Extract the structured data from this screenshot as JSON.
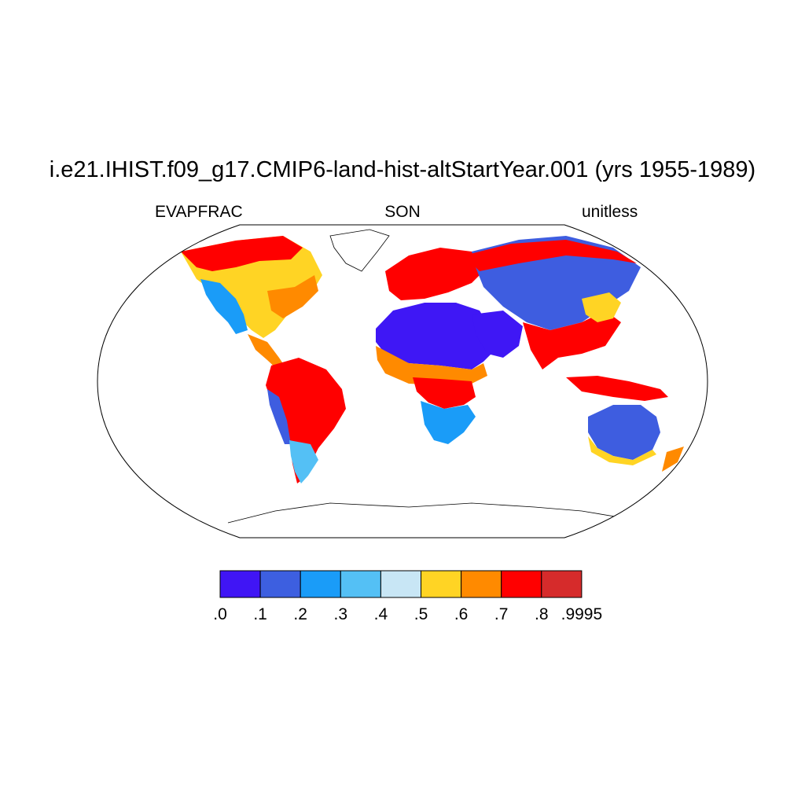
{
  "header": {
    "title": "i.e21.IHIST.f09_g17.CMIP6-land-hist-altStartYear.001 (yrs 1955-1989)",
    "left_string": "EVAPFRAC",
    "center_string": "SON",
    "right_string": "unitless"
  },
  "map": {
    "projection": "Robinson",
    "variable": "EVAPFRAC",
    "season": "SON",
    "ocean_fill": "none",
    "regions": [
      {
        "region": "Sahara / Arabia",
        "value_range": [
          0.0,
          0.1
        ],
        "color": "#3f17f5"
      },
      {
        "region": "Central Asia",
        "value_range": [
          0.1,
          0.3
        ],
        "color": "#3e5de0"
      },
      {
        "region": "Interior Australia",
        "value_range": [
          0.1,
          0.3
        ],
        "color": "#3e5de0"
      },
      {
        "region": "Southwest North America",
        "value_range": [
          0.2,
          0.4
        ],
        "color": "#1a9cf8"
      },
      {
        "region": "Amazon Basin",
        "value_range": [
          0.7,
          0.9995
        ],
        "color": "#ff0000"
      },
      {
        "region": "Central Africa",
        "value_range": [
          0.7,
          0.9995
        ],
        "color": "#ff0000"
      },
      {
        "region": "Southeast Asia / Indonesia",
        "value_range": [
          0.7,
          0.9995
        ],
        "color": "#ff0000"
      },
      {
        "region": "Sahel",
        "value_range": [
          0.5,
          0.8
        ],
        "color": "#ff8a00"
      },
      {
        "region": "Eastern North America",
        "value_range": [
          0.5,
          0.8
        ],
        "color": "#ffd424"
      },
      {
        "region": "Southern Africa",
        "value_range": [
          0.2,
          0.5
        ],
        "color": "#1a9cf8"
      }
    ]
  },
  "colorbar": {
    "colors": [
      "#4015f5",
      "#3d5fe0",
      "#1a9cf8",
      "#54c0f5",
      "#c8e6f5",
      "#ffd424",
      "#ff8a00",
      "#ff0000",
      "#d62b2b"
    ],
    "labels": [
      ".0",
      ".1",
      ".2",
      ".3",
      ".4",
      ".5",
      ".6",
      ".7",
      ".8",
      ".9995"
    ]
  }
}
